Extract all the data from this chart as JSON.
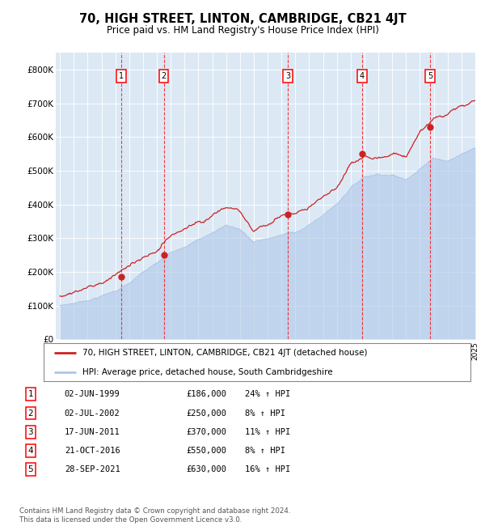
{
  "title": "70, HIGH STREET, LINTON, CAMBRIDGE, CB21 4JT",
  "subtitle": "Price paid vs. HM Land Registry's House Price Index (HPI)",
  "background_color": "#dce9f5",
  "hpi_color": "#aec6e8",
  "price_color": "#cc2222",
  "sale_dot_color": "#cc2222",
  "yticks": [
    0,
    100000,
    200000,
    300000,
    400000,
    500000,
    600000,
    700000,
    800000
  ],
  "ytick_labels": [
    "£0",
    "£100K",
    "£200K",
    "£300K",
    "£400K",
    "£500K",
    "£600K",
    "£700K",
    "£800K"
  ],
  "year_start": 1995,
  "year_end": 2025,
  "sales": [
    {
      "num": 1,
      "year": 1999.42,
      "price": 186000,
      "date": "02-JUN-1999",
      "pct": "24%",
      "dir": "↑"
    },
    {
      "num": 2,
      "year": 2002.5,
      "price": 250000,
      "date": "02-JUL-2002",
      "pct": "8%",
      "dir": "↑"
    },
    {
      "num": 3,
      "year": 2011.46,
      "price": 370000,
      "date": "17-JUN-2011",
      "pct": "11%",
      "dir": "↑"
    },
    {
      "num": 4,
      "year": 2016.81,
      "price": 550000,
      "date": "21-OCT-2016",
      "pct": "8%",
      "dir": "↑"
    },
    {
      "num": 5,
      "year": 2021.74,
      "price": 630000,
      "date": "28-SEP-2021",
      "pct": "16%",
      "dir": "↑"
    }
  ],
  "legend_line1": "70, HIGH STREET, LINTON, CAMBRIDGE, CB21 4JT (detached house)",
  "legend_line2": "HPI: Average price, detached house, South Cambridgeshire",
  "footer": "Contains HM Land Registry data © Crown copyright and database right 2024.\nThis data is licensed under the Open Government Licence v3.0."
}
